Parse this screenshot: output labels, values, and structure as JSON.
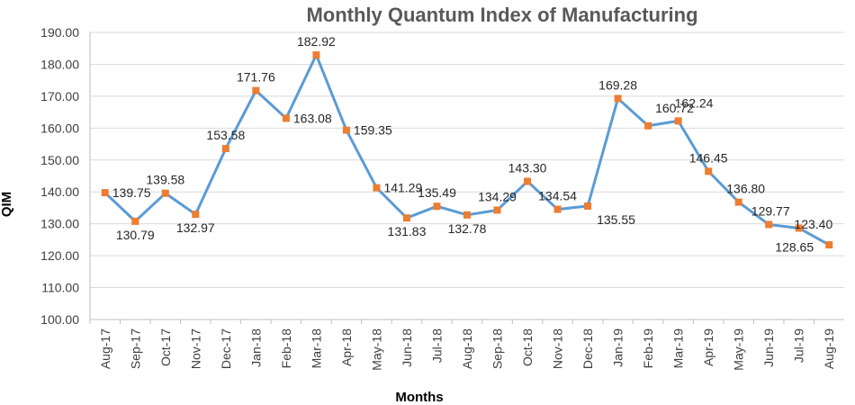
{
  "chart_data": {
    "type": "line",
    "title": "Monthly Quantum Index of Manufacturing",
    "xlabel": "Months",
    "ylabel": "QIM",
    "ylim": [
      100,
      190
    ],
    "ytick_step": 10,
    "ytick_labels": [
      "100.00",
      "110.00",
      "120.00",
      "130.00",
      "140.00",
      "150.00",
      "160.00",
      "170.00",
      "180.00",
      "190.00"
    ],
    "grid": "horizontal",
    "categories": [
      "Aug-17",
      "Sep-17",
      "Oct-17",
      "Nov-17",
      "Dec-17",
      "Jan-18",
      "Feb-18",
      "Mar-18",
      "Apr-18",
      "May-18",
      "Jun-18",
      "Jul-18",
      "Aug-18",
      "Sep-18",
      "Oct-18",
      "Nov-18",
      "Dec-18",
      "Jan-19",
      "Feb-19",
      "Mar-19",
      "Apr-19",
      "May-19",
      "Jun-19",
      "Jul-19",
      "Aug-19"
    ],
    "series": [
      {
        "values": [
          139.75,
          130.79,
          139.58,
          132.97,
          153.58,
          171.76,
          163.08,
          182.92,
          159.35,
          141.29,
          131.83,
          135.49,
          132.78,
          134.29,
          143.3,
          134.54,
          135.55,
          169.28,
          160.72,
          162.24,
          146.45,
          136.8,
          129.77,
          128.65,
          123.4
        ],
        "labels": [
          "139.75",
          "130.79",
          "139.58",
          "132.97",
          "153.58",
          "171.76",
          "163.08",
          "182.92",
          "159.35",
          "141.29",
          "131.83",
          "135.49",
          "132.78",
          "134.29",
          "143.30",
          "134.54",
          "135.55",
          "169.28",
          "160.72",
          "162.24",
          "146.45",
          "136.80",
          "129.77",
          "128.65",
          "123.40"
        ],
        "line_color": "#5b9bd5",
        "marker_color": "#ed7d31"
      }
    ]
  }
}
